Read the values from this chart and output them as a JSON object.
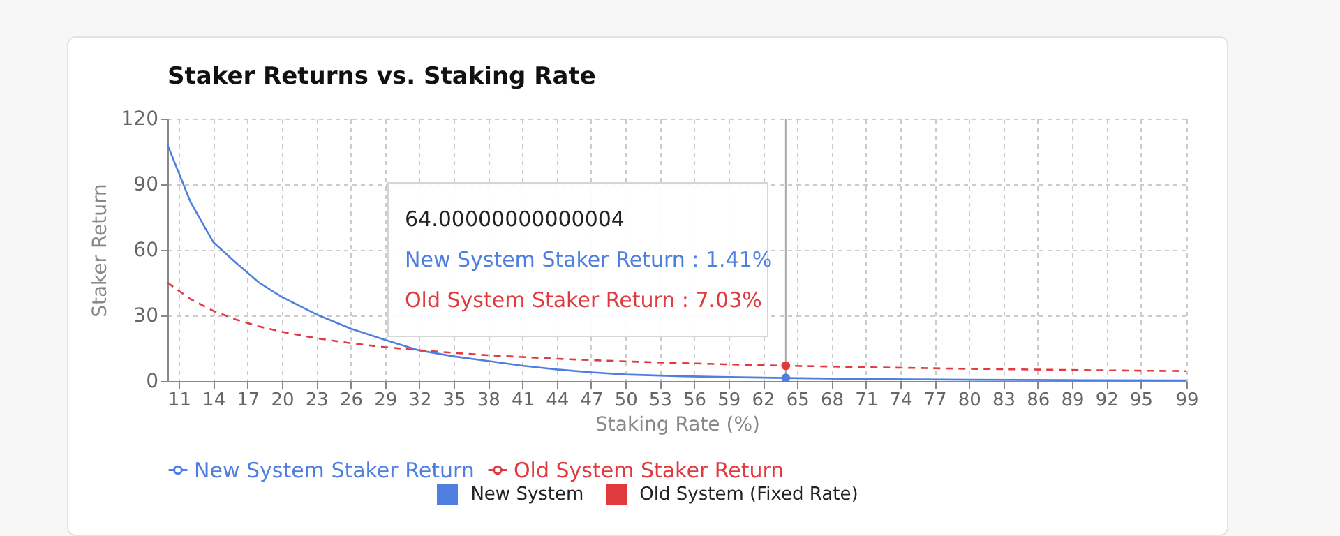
{
  "chart_data": {
    "type": "line",
    "title": "Staker Returns vs. Staking Rate",
    "xlabel": "Staking Rate (%)",
    "ylabel": "Staker Return",
    "x": [
      10,
      12,
      14,
      16,
      18,
      20,
      23,
      26,
      29,
      32,
      35,
      38,
      41,
      44,
      47,
      50,
      55,
      60,
      64,
      70,
      80,
      90,
      99
    ],
    "series": [
      {
        "name": "New System Staker Return",
        "color": "#4e7fe0",
        "line_style": "solid",
        "values": [
          108,
          82,
          63.5,
          54,
          45,
          38.4,
          30.5,
          24,
          18.8,
          14,
          11.3,
          9.2,
          7,
          5.3,
          4,
          3,
          2.2,
          1.7,
          1.41,
          1.0,
          0.6,
          0.4,
          0.3
        ]
      },
      {
        "name": "Old System Staker Return",
        "color": "#e0393e",
        "line_style": "dashed",
        "values": [
          45,
          37.5,
          32.1,
          28.1,
          25,
          22.5,
          19.6,
          17.3,
          15.5,
          14.1,
          12.9,
          11.8,
          11,
          10.2,
          9.6,
          9,
          8.2,
          7.5,
          7.03,
          6.4,
          5.6,
          5,
          4.55
        ]
      }
    ],
    "xlim": [
      10,
      99
    ],
    "xticks": [
      11,
      14,
      17,
      20,
      23,
      26,
      29,
      32,
      35,
      38,
      41,
      44,
      47,
      50,
      53,
      56,
      59,
      62,
      65,
      68,
      71,
      74,
      77,
      80,
      83,
      86,
      89,
      92,
      95,
      99
    ],
    "ylim": [
      0,
      120
    ],
    "yticks": [
      0,
      30,
      60,
      90,
      120
    ],
    "grid": true,
    "legend": "bottom",
    "ref_lines": [
      {
        "axis": "x",
        "value": 64,
        "color": "#aaaaaa"
      }
    ],
    "annotations": [
      "64.00000000000004",
      "New System Staker Return : 1.41%",
      "Old System Staker Return : 7.03%",
      "New System",
      "Old System (Fixed Rate)"
    ]
  }
}
